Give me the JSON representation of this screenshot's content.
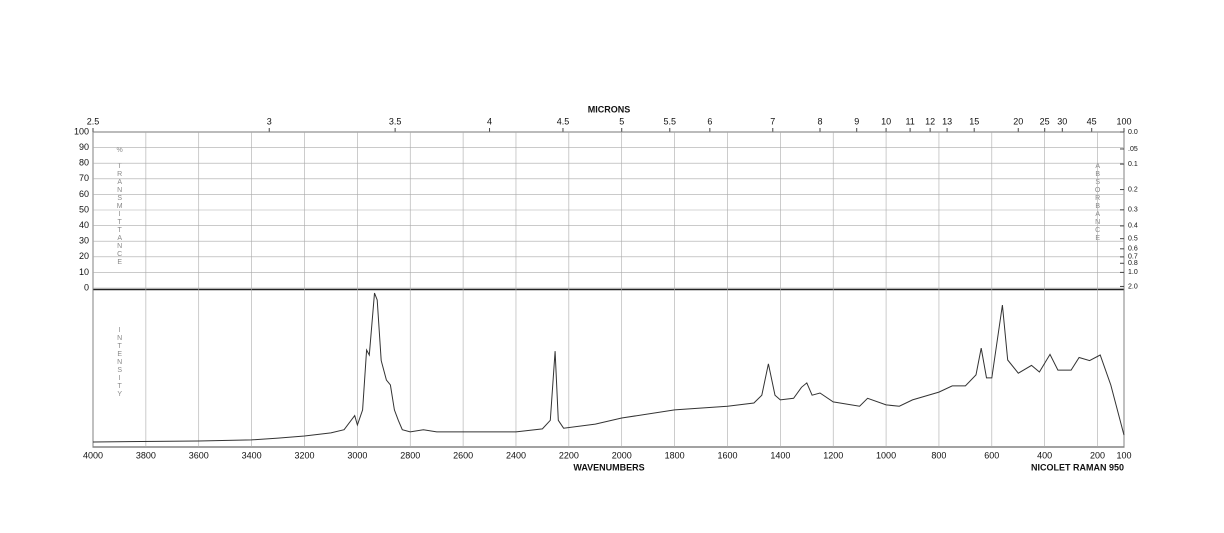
{
  "chart_data": {
    "type": "line",
    "microns_label": "MICRONS",
    "microns_ticks": [
      2.5,
      3,
      3.5,
      4,
      4.5,
      5,
      5.5,
      6,
      7,
      8,
      9,
      10,
      11,
      12,
      13,
      15,
      20,
      25,
      30,
      45,
      100
    ],
    "xlabel": "WAVENUMBERS",
    "instrument": "NICOLET RAMAN 950",
    "xlim": [
      4000,
      100
    ],
    "xticks": [
      4000,
      3800,
      3600,
      3400,
      3200,
      3000,
      2800,
      2600,
      2400,
      2200,
      2000,
      1800,
      1600,
      1400,
      1200,
      1000,
      800,
      600,
      400,
      200,
      100
    ],
    "transmittance_label": "% TRANSMITTANCE",
    "transmittance_lim": [
      0,
      100
    ],
    "transmittance_ticks": [
      100,
      90,
      80,
      70,
      60,
      50,
      40,
      30,
      20,
      10,
      0
    ],
    "absorbance_label": "ABSORBANCE",
    "absorbance_ticks": [
      {
        "value": 0,
        "label": "0.0"
      },
      {
        "value": 0.05,
        "label": ".05"
      },
      0.1,
      0.2,
      0.3,
      0.4,
      0.5,
      0.6,
      0.7,
      0.8,
      {
        "value": 1,
        "label": "1.0"
      },
      {
        "value": 2,
        "label": "2.0"
      }
    ],
    "ylabel": "INTENSITY",
    "ylim": [
      0,
      100
    ],
    "color": "#333333",
    "grid": true,
    "x": [
      4000,
      3600,
      3400,
      3300,
      3200,
      3100,
      3050,
      3010,
      3000,
      2980,
      2965,
      2955,
      2935,
      2925,
      2910,
      2890,
      2875,
      2860,
      2845,
      2830,
      2800,
      2750,
      2700,
      2500,
      2400,
      2300,
      2270,
      2252,
      2240,
      2220,
      2100,
      2000,
      1800,
      1600,
      1500,
      1470,
      1445,
      1420,
      1400,
      1350,
      1320,
      1300,
      1280,
      1250,
      1200,
      1100,
      1070,
      1000,
      950,
      900,
      850,
      800,
      750,
      700,
      660,
      640,
      620,
      600,
      560,
      540,
      500,
      450,
      420,
      380,
      350,
      300,
      270,
      230,
      190,
      150,
      100
    ],
    "values": [
      3.2,
      3.8,
      4.5,
      5.7,
      7,
      9,
      11,
      20,
      14,
      23.6,
      61.8,
      58.6,
      98,
      93.6,
      55,
      42.7,
      39.5,
      23.6,
      17,
      11,
      9.6,
      11,
      9.6,
      9.6,
      9.6,
      11.5,
      17,
      61,
      17,
      12,
      14.6,
      18.5,
      23.6,
      26,
      28,
      33,
      53,
      33,
      30,
      31,
      38,
      40.8,
      33,
      34.4,
      28.7,
      26,
      31,
      26.8,
      26,
      30,
      32.5,
      35,
      38.9,
      38.9,
      45.9,
      63,
      44,
      44,
      90.4,
      55.4,
      47,
      52,
      47.8,
      59,
      49,
      49,
      57,
      55,
      58.6,
      39.5,
      7.6
    ]
  }
}
